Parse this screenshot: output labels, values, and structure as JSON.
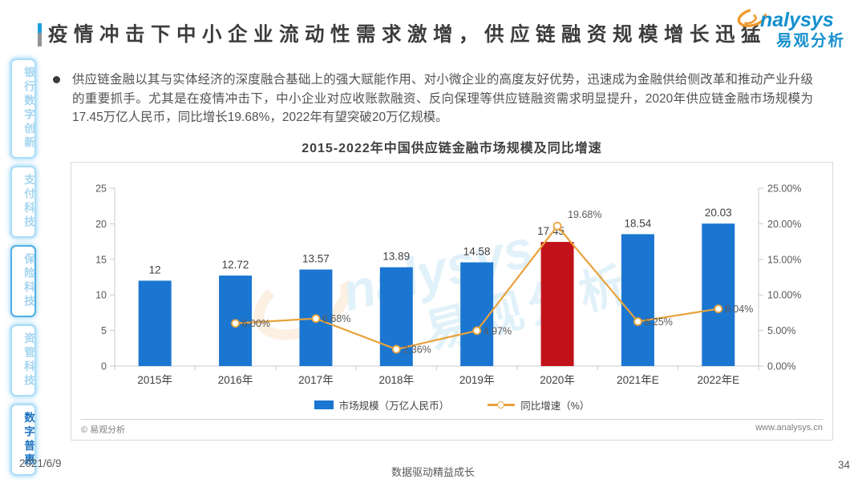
{
  "header": {
    "title": "疫情冲击下中小企业流动性需求激增，供应链融资规模增长迅猛",
    "logo": {
      "brand_en": "nalysys",
      "brand_cn": "易观分析"
    }
  },
  "sidebar": {
    "tabs": [
      {
        "label": "银行数字创新",
        "active": false,
        "emphasized": false
      },
      {
        "label": "支付科技",
        "active": false,
        "emphasized": false
      },
      {
        "label": "保险科技",
        "active": false,
        "emphasized": true
      },
      {
        "label": "资管科技",
        "active": false,
        "emphasized": false
      },
      {
        "label": "数字普惠",
        "active": true,
        "emphasized": false
      }
    ]
  },
  "summary": {
    "text": "供应链金融以其与实体经济的深度融合基础上的强大赋能作用、对小微企业的高度友好优势，迅速成为金融供给侧改革和推动产业升级的重要抓手。尤其是在疫情冲击下，中小企业对应收账款融资、反向保理等供应链融资需求明显提升，2020年供应链金融市场规模为17.45万亿人民币，同比增长19.68%，2022年有望突破20万亿规模。"
  },
  "chart_data": {
    "type": "bar+line",
    "title": "2015-2022年中国供应链金融市场规模及同比增速",
    "categories": [
      "2015年",
      "2016年",
      "2017年",
      "2018年",
      "2019年",
      "2020年",
      "2021年E",
      "2022年E"
    ],
    "series": [
      {
        "name": "市场规模（万亿人民币）",
        "type": "bar",
        "values": [
          12,
          12.72,
          13.57,
          13.89,
          14.58,
          17.45,
          18.54,
          20.03
        ],
        "value_labels": [
          "12",
          "12.72",
          "13.57",
          "13.89",
          "14.58",
          "17.45",
          "18.54",
          "20.03"
        ],
        "color": "#1B76D1",
        "highlight": {
          "index": 5,
          "color": "#C1121A"
        }
      },
      {
        "name": "同比增速（%）",
        "type": "line",
        "values": [
          null,
          6.0,
          6.68,
          2.36,
          4.97,
          19.68,
          6.25,
          8.04
        ],
        "point_labels": [
          "",
          "6.00%",
          "6.68%",
          "2.36%",
          "4.97%",
          "19.68%",
          "6.25%",
          "8.04%"
        ],
        "color": "#E8A23C",
        "marker": "open-circle"
      }
    ],
    "left_axis": {
      "min": 0,
      "max": 25,
      "tick_values": [
        25,
        20,
        15,
        10,
        5,
        0
      ],
      "tick_labels": [
        "25",
        "20",
        "15",
        "10",
        "5",
        "0"
      ]
    },
    "right_axis": {
      "min": 0,
      "max": 25,
      "tick_values": [
        25,
        20,
        15,
        10,
        5,
        0
      ],
      "tick_labels": [
        "25.00%",
        "20.00%",
        "15.00%",
        "10.00%",
        "5.00%",
        "0.00%"
      ]
    },
    "grid": false,
    "legend_position": "bottom",
    "watermark": {
      "text_en": "nalysys",
      "text_cn": "易观分析"
    }
  },
  "chart_footer": {
    "copyright": "© 易观分析",
    "website": "www.analysys.cn"
  },
  "footer": {
    "date": "2021/6/9",
    "tagline": "数据驱动精益成长",
    "page_number": "34"
  }
}
